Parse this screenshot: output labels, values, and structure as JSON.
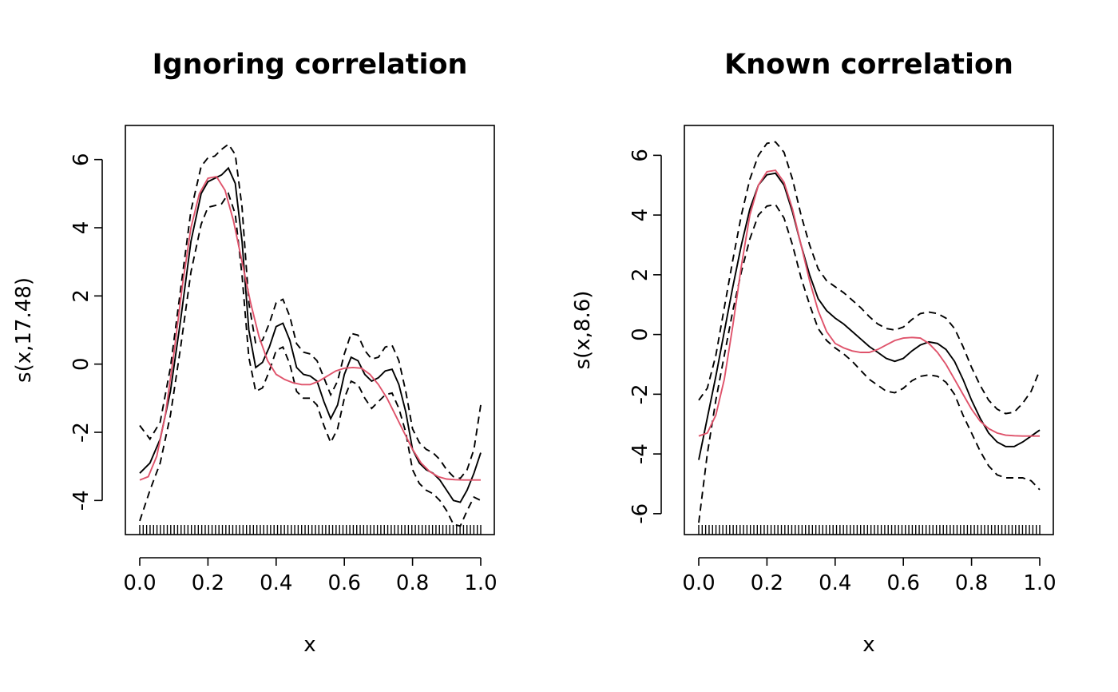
{
  "chart_data": [
    {
      "type": "line",
      "title": "Ignoring correlation",
      "xlabel": "x",
      "ylabel": "s(x,17.48)",
      "xlim": [
        0,
        1
      ],
      "ylim": [
        -5,
        7
      ],
      "x_ticks": [
        0.0,
        0.2,
        0.4,
        0.6,
        0.8,
        1.0
      ],
      "x_tick_labels": [
        "0.0",
        "0.2",
        "0.4",
        "0.6",
        "0.8",
        "1.0"
      ],
      "y_ticks": [
        -4,
        -2,
        0,
        2,
        4,
        6
      ],
      "y_tick_labels": [
        "-4",
        "-2",
        "0",
        "2",
        "4",
        "6"
      ],
      "rug": {
        "from": 0,
        "to": 1,
        "count": 100
      },
      "series": [
        {
          "name": "estimate",
          "color": "#000000",
          "style": "solid",
          "x": [
            0,
            0.03,
            0.06,
            0.09,
            0.12,
            0.15,
            0.18,
            0.2,
            0.22,
            0.24,
            0.26,
            0.28,
            0.3,
            0.32,
            0.34,
            0.36,
            0.38,
            0.4,
            0.42,
            0.44,
            0.46,
            0.48,
            0.5,
            0.52,
            0.54,
            0.56,
            0.58,
            0.6,
            0.62,
            0.64,
            0.66,
            0.68,
            0.7,
            0.72,
            0.74,
            0.76,
            0.78,
            0.8,
            0.82,
            0.84,
            0.86,
            0.88,
            0.9,
            0.92,
            0.94,
            0.96,
            0.98,
            1.0
          ],
          "y": [
            -3.2,
            -2.9,
            -2.2,
            -0.8,
            1.3,
            3.6,
            5.0,
            5.35,
            5.45,
            5.55,
            5.75,
            5.3,
            3.6,
            1.0,
            -0.1,
            0.05,
            0.5,
            1.1,
            1.2,
            0.7,
            -0.1,
            -0.3,
            -0.35,
            -0.5,
            -1.1,
            -1.6,
            -1.2,
            -0.3,
            0.2,
            0.1,
            -0.3,
            -0.5,
            -0.4,
            -0.2,
            -0.15,
            -0.6,
            -1.4,
            -2.5,
            -2.9,
            -3.1,
            -3.2,
            -3.4,
            -3.7,
            -4.0,
            -4.05,
            -3.7,
            -3.2,
            -2.6
          ]
        },
        {
          "name": "upper band",
          "color": "#000000",
          "style": "dashed",
          "x": [
            0,
            0.03,
            0.06,
            0.09,
            0.12,
            0.15,
            0.18,
            0.2,
            0.22,
            0.24,
            0.26,
            0.28,
            0.3,
            0.32,
            0.34,
            0.36,
            0.38,
            0.4,
            0.42,
            0.44,
            0.46,
            0.48,
            0.5,
            0.52,
            0.54,
            0.56,
            0.58,
            0.6,
            0.62,
            0.64,
            0.66,
            0.68,
            0.7,
            0.72,
            0.74,
            0.76,
            0.78,
            0.8,
            0.82,
            0.84,
            0.86,
            0.88,
            0.9,
            0.92,
            0.94,
            0.96,
            0.98,
            1.0
          ],
          "y": [
            -1.8,
            -2.2,
            -1.7,
            -0.1,
            2.2,
            4.5,
            5.8,
            6.05,
            6.1,
            6.3,
            6.45,
            6.15,
            4.6,
            1.8,
            0.6,
            0.7,
            1.2,
            1.8,
            1.9,
            1.4,
            0.6,
            0.35,
            0.3,
            0.1,
            -0.4,
            -0.9,
            -0.5,
            0.3,
            0.9,
            0.85,
            0.4,
            0.15,
            0.2,
            0.5,
            0.55,
            0.1,
            -0.8,
            -1.9,
            -2.3,
            -2.5,
            -2.6,
            -2.8,
            -3.1,
            -3.3,
            -3.35,
            -3.1,
            -2.5,
            -1.2
          ]
        },
        {
          "name": "lower band",
          "color": "#000000",
          "style": "dashed",
          "x": [
            0,
            0.03,
            0.06,
            0.09,
            0.12,
            0.15,
            0.18,
            0.2,
            0.22,
            0.24,
            0.26,
            0.28,
            0.3,
            0.32,
            0.34,
            0.36,
            0.38,
            0.4,
            0.42,
            0.44,
            0.46,
            0.48,
            0.5,
            0.52,
            0.54,
            0.56,
            0.58,
            0.6,
            0.62,
            0.64,
            0.66,
            0.68,
            0.7,
            0.72,
            0.74,
            0.76,
            0.78,
            0.8,
            0.82,
            0.84,
            0.86,
            0.88,
            0.9,
            0.92,
            0.94,
            0.96,
            0.98,
            1.0
          ],
          "y": [
            -4.6,
            -3.7,
            -2.9,
            -1.5,
            0.5,
            2.7,
            4.1,
            4.6,
            4.65,
            4.7,
            5.0,
            4.4,
            2.6,
            0.2,
            -0.8,
            -0.7,
            -0.2,
            0.4,
            0.5,
            0.0,
            -0.8,
            -1.0,
            -1.0,
            -1.2,
            -1.8,
            -2.3,
            -1.9,
            -1.0,
            -0.5,
            -0.6,
            -1.0,
            -1.3,
            -1.1,
            -0.9,
            -0.85,
            -1.3,
            -2.0,
            -3.1,
            -3.5,
            -3.7,
            -3.8,
            -4.0,
            -4.3,
            -4.7,
            -4.75,
            -4.3,
            -3.9,
            -4.0
          ]
        },
        {
          "name": "true function",
          "color": "#DF536B",
          "style": "solid",
          "x": [
            0,
            0.025,
            0.05,
            0.075,
            0.1,
            0.125,
            0.15,
            0.175,
            0.2,
            0.225,
            0.25,
            0.275,
            0.3,
            0.325,
            0.35,
            0.375,
            0.4,
            0.425,
            0.45,
            0.475,
            0.5,
            0.525,
            0.55,
            0.575,
            0.6,
            0.625,
            0.65,
            0.675,
            0.7,
            0.725,
            0.75,
            0.775,
            0.8,
            0.825,
            0.85,
            0.875,
            0.9,
            0.925,
            0.95,
            0.975,
            1.0
          ],
          "y": [
            -3.4,
            -3.3,
            -2.7,
            -1.5,
            0.3,
            2.3,
            4.0,
            5.0,
            5.45,
            5.5,
            5.1,
            4.2,
            3.0,
            1.8,
            0.8,
            0.1,
            -0.3,
            -0.45,
            -0.55,
            -0.6,
            -0.6,
            -0.5,
            -0.35,
            -0.2,
            -0.12,
            -0.1,
            -0.12,
            -0.3,
            -0.6,
            -1.0,
            -1.5,
            -2.0,
            -2.5,
            -2.9,
            -3.15,
            -3.3,
            -3.37,
            -3.39,
            -3.4,
            -3.4,
            -3.4
          ]
        }
      ]
    },
    {
      "type": "line",
      "title": "Known correlation",
      "xlabel": "x",
      "ylabel": "s(x,8.6)",
      "xlim": [
        0,
        1
      ],
      "ylim": [
        -6.7,
        7
      ],
      "x_ticks": [
        0.0,
        0.2,
        0.4,
        0.6,
        0.8,
        1.0
      ],
      "x_tick_labels": [
        "0.0",
        "0.2",
        "0.4",
        "0.6",
        "0.8",
        "1.0"
      ],
      "y_ticks": [
        -6,
        -4,
        -2,
        0,
        2,
        4,
        6
      ],
      "y_tick_labels": [
        "-6",
        "-4",
        "-2",
        "0",
        "2",
        "4",
        "6"
      ],
      "rug": {
        "from": 0,
        "to": 1,
        "count": 100
      },
      "series": [
        {
          "name": "estimate",
          "color": "#000000",
          "style": "solid",
          "x": [
            0,
            0.025,
            0.05,
            0.075,
            0.1,
            0.125,
            0.15,
            0.175,
            0.2,
            0.225,
            0.25,
            0.275,
            0.3,
            0.325,
            0.35,
            0.375,
            0.4,
            0.425,
            0.45,
            0.475,
            0.5,
            0.525,
            0.55,
            0.575,
            0.6,
            0.625,
            0.65,
            0.675,
            0.7,
            0.725,
            0.75,
            0.775,
            0.8,
            0.825,
            0.85,
            0.875,
            0.9,
            0.925,
            0.95,
            0.975,
            1.0
          ],
          "y": [
            -4.2,
            -2.8,
            -1.4,
            0.1,
            1.6,
            3.0,
            4.2,
            5.0,
            5.35,
            5.4,
            5.0,
            4.1,
            3.0,
            2.0,
            1.2,
            0.8,
            0.55,
            0.35,
            0.1,
            -0.15,
            -0.4,
            -0.6,
            -0.8,
            -0.9,
            -0.8,
            -0.55,
            -0.35,
            -0.25,
            -0.3,
            -0.5,
            -0.9,
            -1.5,
            -2.2,
            -2.8,
            -3.3,
            -3.6,
            -3.75,
            -3.75,
            -3.6,
            -3.4,
            -3.2
          ]
        },
        {
          "name": "upper band",
          "color": "#000000",
          "style": "dashed",
          "x": [
            0,
            0.025,
            0.05,
            0.075,
            0.1,
            0.125,
            0.15,
            0.175,
            0.2,
            0.225,
            0.25,
            0.275,
            0.3,
            0.325,
            0.35,
            0.375,
            0.4,
            0.425,
            0.45,
            0.475,
            0.5,
            0.525,
            0.55,
            0.575,
            0.6,
            0.625,
            0.65,
            0.675,
            0.7,
            0.725,
            0.75,
            0.775,
            0.8,
            0.825,
            0.85,
            0.875,
            0.9,
            0.925,
            0.95,
            0.975,
            1.0
          ],
          "y": [
            -2.2,
            -1.8,
            -0.7,
            0.9,
            2.5,
            4.0,
            5.2,
            6.0,
            6.4,
            6.45,
            6.1,
            5.2,
            4.0,
            3.0,
            2.2,
            1.8,
            1.6,
            1.4,
            1.15,
            0.9,
            0.6,
            0.35,
            0.2,
            0.15,
            0.25,
            0.5,
            0.7,
            0.75,
            0.7,
            0.55,
            0.2,
            -0.4,
            -1.1,
            -1.7,
            -2.2,
            -2.5,
            -2.65,
            -2.6,
            -2.3,
            -1.9,
            -1.2
          ]
        },
        {
          "name": "lower band",
          "color": "#000000",
          "style": "dashed",
          "x": [
            0,
            0.025,
            0.05,
            0.075,
            0.1,
            0.125,
            0.15,
            0.175,
            0.2,
            0.225,
            0.25,
            0.275,
            0.3,
            0.325,
            0.35,
            0.375,
            0.4,
            0.425,
            0.45,
            0.475,
            0.5,
            0.525,
            0.55,
            0.575,
            0.6,
            0.625,
            0.65,
            0.675,
            0.7,
            0.725,
            0.75,
            0.775,
            0.8,
            0.825,
            0.85,
            0.875,
            0.9,
            0.925,
            0.95,
            0.975,
            1.0
          ],
          "y": [
            -6.3,
            -4.0,
            -2.2,
            -0.7,
            0.8,
            2.1,
            3.2,
            4.0,
            4.3,
            4.35,
            3.9,
            3.0,
            1.9,
            1.0,
            0.2,
            -0.2,
            -0.45,
            -0.65,
            -0.9,
            -1.2,
            -1.5,
            -1.7,
            -1.9,
            -1.95,
            -1.8,
            -1.55,
            -1.4,
            -1.35,
            -1.4,
            -1.6,
            -2.0,
            -2.7,
            -3.3,
            -3.9,
            -4.4,
            -4.7,
            -4.8,
            -4.8,
            -4.8,
            -4.9,
            -5.2
          ]
        },
        {
          "name": "true function",
          "color": "#DF536B",
          "style": "solid",
          "x": [
            0,
            0.025,
            0.05,
            0.075,
            0.1,
            0.125,
            0.15,
            0.175,
            0.2,
            0.225,
            0.25,
            0.275,
            0.3,
            0.325,
            0.35,
            0.375,
            0.4,
            0.425,
            0.45,
            0.475,
            0.5,
            0.525,
            0.55,
            0.575,
            0.6,
            0.625,
            0.65,
            0.675,
            0.7,
            0.725,
            0.75,
            0.775,
            0.8,
            0.825,
            0.85,
            0.875,
            0.9,
            0.925,
            0.95,
            0.975,
            1.0
          ],
          "y": [
            -3.4,
            -3.3,
            -2.7,
            -1.5,
            0.3,
            2.3,
            4.0,
            5.0,
            5.45,
            5.5,
            5.1,
            4.2,
            3.0,
            1.8,
            0.8,
            0.1,
            -0.3,
            -0.45,
            -0.55,
            -0.6,
            -0.6,
            -0.5,
            -0.35,
            -0.2,
            -0.12,
            -0.1,
            -0.12,
            -0.3,
            -0.6,
            -1.0,
            -1.5,
            -2.0,
            -2.5,
            -2.9,
            -3.15,
            -3.3,
            -3.37,
            -3.39,
            -3.4,
            -3.4,
            -3.4
          ]
        }
      ]
    }
  ]
}
